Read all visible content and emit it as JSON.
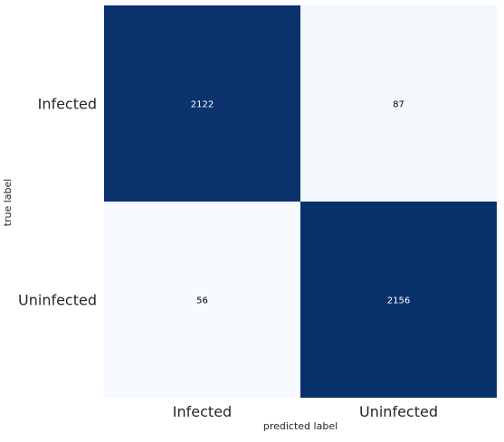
{
  "chart_data": {
    "type": "heatmap",
    "rows": [
      "Infected",
      "Uninfected"
    ],
    "columns": [
      "Infected",
      "Uninfected"
    ],
    "values": [
      [
        2122,
        87
      ],
      [
        56,
        2156
      ]
    ],
    "xlabel": "predicted label",
    "ylabel": "true label",
    "colormap": {
      "low": "#f7fbff",
      "high": "#08306b",
      "annotation_text_on_dark": "#ffffff",
      "annotation_text_on_light": "#000000"
    },
    "grid": false,
    "colorbar": false
  }
}
